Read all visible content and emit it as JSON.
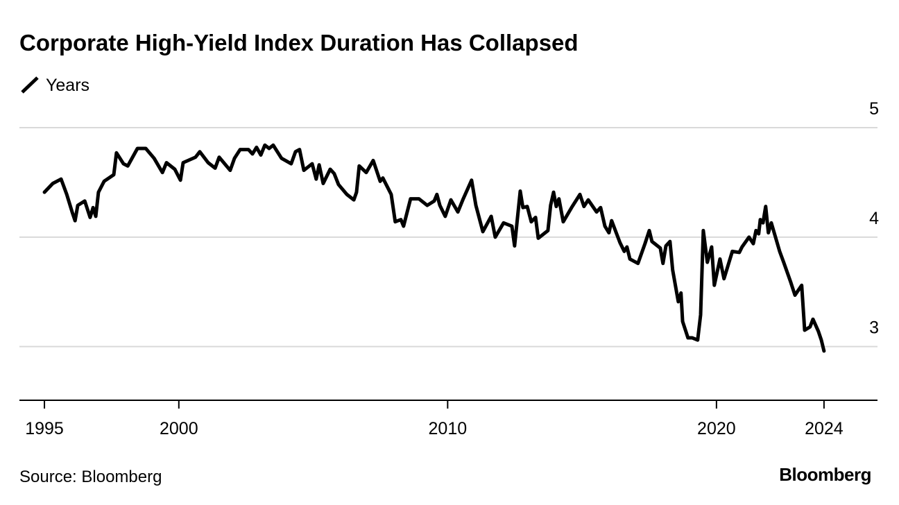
{
  "chart_data": {
    "type": "line",
    "title": "Corporate High-Yield Index Duration Has Collapsed",
    "source": "Source: Bloomberg",
    "logo": "Bloomberg",
    "x": [
      1995.0,
      1995.31,
      1995.62,
      1995.83,
      1996.03,
      1996.14,
      1996.24,
      1996.5,
      1996.7,
      1996.81,
      1996.91,
      1997.01,
      1997.22,
      1997.58,
      1997.68,
      1997.94,
      1998.1,
      1998.46,
      1998.77,
      1999.08,
      1999.39,
      1999.54,
      1999.85,
      2000.06,
      2000.16,
      2000.62,
      2000.78,
      2001.09,
      2001.35,
      2001.5,
      2001.91,
      2002.07,
      2002.28,
      2002.59,
      2002.74,
      2002.89,
      2003.05,
      2003.2,
      2003.36,
      2003.51,
      2003.82,
      2004.18,
      2004.34,
      2004.49,
      2004.65,
      2004.96,
      2005.11,
      2005.22,
      2005.37,
      2005.63,
      2005.78,
      2005.94,
      2006.25,
      2006.51,
      2006.61,
      2006.71,
      2006.97,
      2007.23,
      2007.49,
      2007.59,
      2007.9,
      2008.05,
      2008.26,
      2008.36,
      2008.62,
      2008.93,
      2009.24,
      2009.5,
      2009.6,
      2009.71,
      2009.91,
      2010.12,
      2010.38,
      2010.58,
      2010.89,
      2011.05,
      2011.31,
      2011.62,
      2011.77,
      2012.08,
      2012.39,
      2012.49,
      2012.7,
      2012.8,
      2012.96,
      2013.11,
      2013.27,
      2013.37,
      2013.73,
      2013.83,
      2013.94,
      2014.04,
      2014.14,
      2014.3,
      2014.61,
      2014.92,
      2015.07,
      2015.23,
      2015.54,
      2015.69,
      2015.85,
      2016.0,
      2016.1,
      2016.41,
      2016.57,
      2016.67,
      2016.78,
      2017.08,
      2017.34,
      2017.5,
      2017.6,
      2017.91,
      2018.01,
      2018.12,
      2018.27,
      2018.37,
      2018.58,
      2018.68,
      2018.74,
      2018.94,
      2019.1,
      2019.3,
      2019.41,
      2019.51,
      2019.66,
      2019.82,
      2019.92,
      2020.13,
      2020.28,
      2020.59,
      2020.85,
      2020.95,
      2021.21,
      2021.37,
      2021.47,
      2021.57,
      2021.63,
      2021.73,
      2021.83,
      2021.93,
      2022.04,
      2022.35,
      2022.5,
      2022.76,
      2022.92,
      2023.17,
      2023.28,
      2023.48,
      2023.59,
      2023.79,
      2023.9,
      2024.0
    ],
    "series": [
      {
        "name": "Years",
        "color": "#000000",
        "values": [
          4.41,
          4.49,
          4.53,
          4.39,
          4.23,
          4.15,
          4.29,
          4.33,
          4.18,
          4.27,
          4.19,
          4.41,
          4.51,
          4.57,
          4.77,
          4.67,
          4.65,
          4.81,
          4.81,
          4.72,
          4.59,
          4.68,
          4.62,
          4.52,
          4.68,
          4.73,
          4.78,
          4.68,
          4.63,
          4.73,
          4.61,
          4.72,
          4.8,
          4.8,
          4.76,
          4.82,
          4.75,
          4.84,
          4.81,
          4.84,
          4.72,
          4.67,
          4.78,
          4.8,
          4.61,
          4.67,
          4.53,
          4.66,
          4.49,
          4.62,
          4.58,
          4.48,
          4.39,
          4.34,
          4.41,
          4.65,
          4.59,
          4.7,
          4.51,
          4.54,
          4.39,
          4.14,
          4.16,
          4.1,
          4.35,
          4.35,
          4.29,
          4.33,
          4.39,
          4.29,
          4.19,
          4.34,
          4.23,
          4.35,
          4.52,
          4.29,
          4.05,
          4.19,
          4.0,
          4.13,
          4.1,
          3.92,
          4.42,
          4.27,
          4.28,
          4.14,
          4.18,
          3.99,
          4.06,
          4.29,
          4.41,
          4.28,
          4.35,
          4.14,
          4.27,
          4.39,
          4.28,
          4.34,
          4.23,
          4.27,
          4.1,
          4.04,
          4.15,
          3.95,
          3.87,
          3.91,
          3.8,
          3.76,
          3.94,
          4.06,
          3.96,
          3.9,
          3.76,
          3.92,
          3.96,
          3.7,
          3.41,
          3.49,
          3.23,
          3.08,
          3.08,
          3.06,
          3.29,
          4.06,
          3.77,
          3.91,
          3.56,
          3.8,
          3.62,
          3.87,
          3.86,
          3.91,
          4.0,
          3.94,
          4.06,
          4.03,
          4.16,
          4.13,
          4.28,
          4.04,
          4.13,
          3.87,
          3.77,
          3.59,
          3.47,
          3.56,
          3.15,
          3.18,
          3.25,
          3.14,
          3.06,
          2.96
        ]
      }
    ],
    "xlim": [
      1994.07,
      2025.99
    ],
    "xticks": [
      1995,
      2000,
      2010,
      2020,
      2024
    ],
    "ylim": [
      2.51,
      5
    ],
    "yticks": [
      3,
      4,
      5
    ],
    "grid": true
  }
}
